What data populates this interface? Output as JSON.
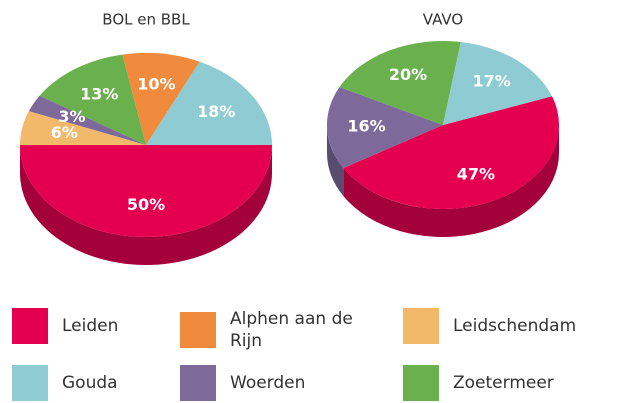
{
  "chart_data": {
    "type": "pie",
    "categories": [
      "Leiden",
      "Leidschendam",
      "Woerden",
      "Zoetermeer",
      "Alphen aan de Rijn",
      "Gouda"
    ],
    "colors": [
      "#e4004f",
      "#f2b96b",
      "#7d6a9a",
      "#6ab04c",
      "#f08a3c",
      "#8ecbd3"
    ],
    "series": [
      {
        "name": "BOL en BBL",
        "values": [
          50,
          6,
          3,
          13,
          10,
          18
        ],
        "value_labels": [
          "50%",
          "6%",
          "3%",
          "13%",
          "10%",
          "18%"
        ]
      },
      {
        "name": "VAVO",
        "values": [
          47,
          null,
          16,
          20,
          null,
          17
        ],
        "value_labels": [
          "47%",
          null,
          "16%",
          "20%",
          null,
          "17%"
        ]
      }
    ]
  }
}
